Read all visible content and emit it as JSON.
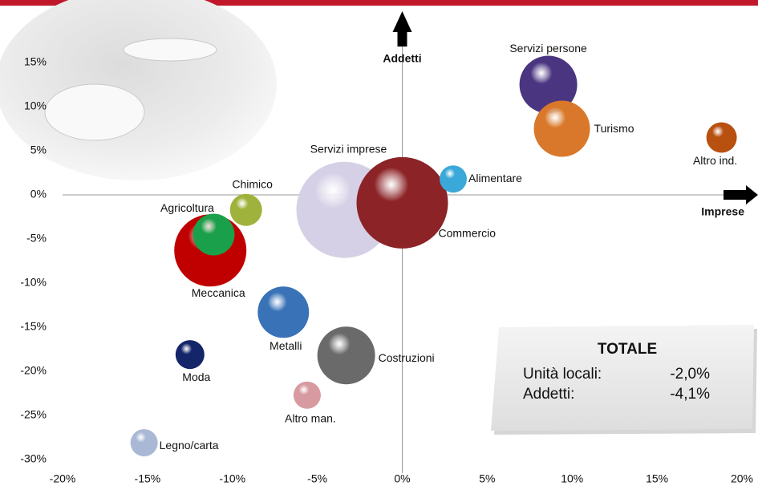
{
  "chart_data": {
    "type": "bubble",
    "axis_labels": {
      "y": "Addetti",
      "x": "Imprese"
    },
    "labels": [
      "Servizi persone",
      "Turismo",
      "Altro ind.",
      "Alimentare",
      "Servizi imprese",
      "Commercio",
      "Chimico",
      "Agricoltura",
      "Meccanica",
      "Metalli",
      "Costruzioni",
      "Moda",
      "Altro man.",
      "Legno/carta"
    ],
    "x": [
      8.6,
      9.4,
      18.8,
      3.0,
      -3.4,
      0.0,
      -9.2,
      -11.1,
      -11.3,
      -7.0,
      -3.3,
      -12.5,
      -5.6,
      -15.2
    ],
    "values": [
      12.5,
      7.5,
      6.5,
      1.8,
      -1.7,
      -0.9,
      -1.7,
      -4.5,
      -6.3,
      -13.3,
      -18.2,
      -18.1,
      -22.7,
      -28.1
    ],
    "sizes": [
      36,
      35,
      19,
      17,
      60,
      57,
      20,
      26,
      45,
      32,
      36,
      18,
      17,
      17
    ],
    "colors": [
      "#4a3580",
      "#d9782a",
      "#b8500f",
      "#3aa8d8",
      "#d6d0e6",
      "#8c2326",
      "#9fb23c",
      "#1aa04a",
      "#c00000",
      "#3a72b8",
      "#6a6a6a",
      "#14256a",
      "#d79aa0",
      "#a9b8d4"
    ],
    "xlim": [
      -20,
      20
    ],
    "ylim": [
      -30,
      15
    ],
    "xticks": [
      {
        "value": -20,
        "label": "-20%"
      },
      {
        "value": -15,
        "label": "-15%"
      },
      {
        "value": -10,
        "label": "-10%"
      },
      {
        "value": -5,
        "label": "-5%"
      },
      {
        "value": 0,
        "label": "0%"
      },
      {
        "value": 5,
        "label": "5%"
      },
      {
        "value": 10,
        "label": "10%"
      },
      {
        "value": 15,
        "label": "15%"
      },
      {
        "value": 20,
        "label": "20%"
      }
    ],
    "yticks": [
      {
        "value": -30,
        "label": "-30%"
      },
      {
        "value": -25,
        "label": "-25%"
      },
      {
        "value": -20,
        "label": "-20%"
      },
      {
        "value": -15,
        "label": "-15%"
      },
      {
        "value": -10,
        "label": "-10%"
      },
      {
        "value": -5,
        "label": "-5%"
      },
      {
        "value": 0,
        "label": "0%"
      },
      {
        "value": 5,
        "label": "5%"
      },
      {
        "value": 10,
        "label": "10%"
      },
      {
        "value": 15,
        "label": "15%"
      }
    ],
    "summary": {
      "title": "TOTALE",
      "rows": [
        [
          "Unità locali:",
          "-2,0%"
        ],
        [
          "Addetti:",
          "-4,1%"
        ]
      ]
    }
  }
}
